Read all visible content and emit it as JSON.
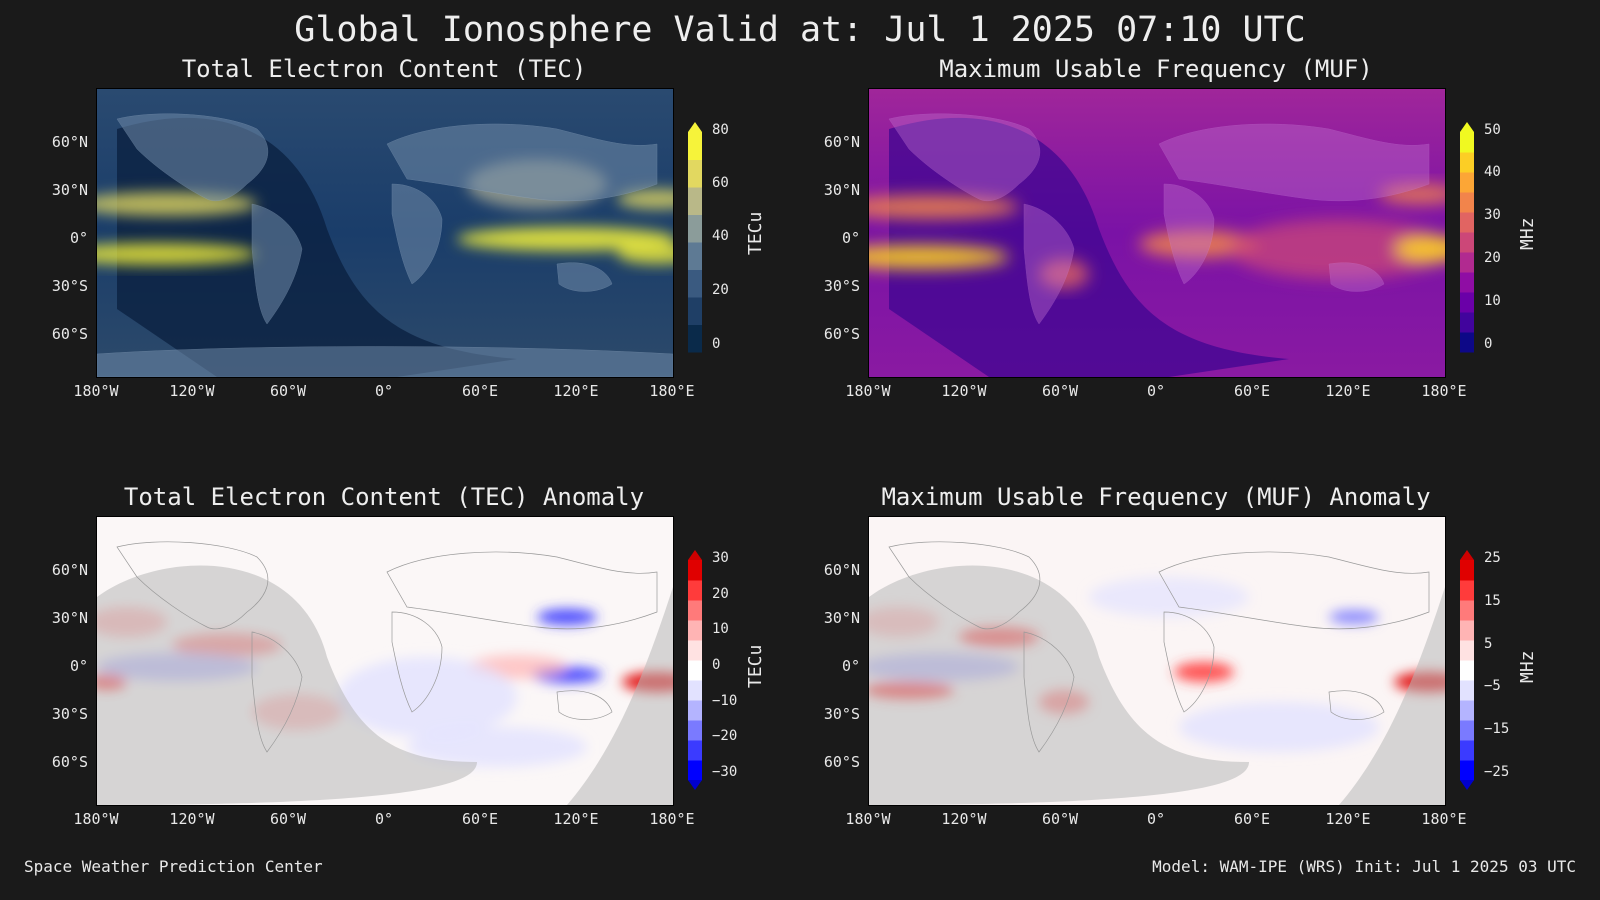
{
  "title": "Global Ionosphere Valid at: Jul 1 2025 07:10 UTC",
  "footer": {
    "left": "Space Weather Prediction Center",
    "right": "Model: WAM-IPE (WRS) Init: Jul 1 2025 03 UTC"
  },
  "map_axes": {
    "lat_labels": [
      "60°N",
      "30°N",
      "0°",
      "30°S",
      "60°S"
    ],
    "lon_labels": [
      "180°W",
      "120°W",
      "60°W",
      "0°",
      "60°E",
      "120°E",
      "180°E"
    ]
  },
  "panels": {
    "tec": {
      "title": "Total Electron Content (TEC)",
      "unit": "TECu",
      "colorbar_ticks": [
        "80",
        "60",
        "40",
        "20",
        "0"
      ],
      "colormap": [
        "#0a2a4a",
        "#1f3f66",
        "#3a5a80",
        "#5e7a94",
        "#8b9c9a",
        "#b9b888",
        "#e2d860",
        "#f6f33a"
      ],
      "extend_top_color": "#f6f33a"
    },
    "muf": {
      "title": "Maximum Usable Frequency (MUF)",
      "unit": "MHz",
      "colorbar_ticks": [
        "50",
        "40",
        "30",
        "20",
        "10",
        "0"
      ],
      "colormap": [
        "#0d0887",
        "#41049d",
        "#6a00a8",
        "#8f0da4",
        "#b12a90",
        "#cc4778",
        "#e16462",
        "#f2844b",
        "#fca636",
        "#fcce25",
        "#f0f921"
      ],
      "extend_top_color": "#f0f921"
    },
    "tec_anom": {
      "title": "Total Electron Content (TEC) Anomaly",
      "unit": "TECu",
      "colorbar_ticks": [
        "30",
        "20",
        "10",
        "0",
        "−10",
        "−20",
        "−30"
      ],
      "colormap": [
        "#0000ff",
        "#3b3bff",
        "#7a7aff",
        "#b4b4ff",
        "#e2e2ff",
        "#ffffff",
        "#ffe2e2",
        "#ffb4b4",
        "#ff7a7a",
        "#ff3b3b",
        "#e00000"
      ],
      "extend_top_color": "#cc0000",
      "extend_bottom_color": "#0000cc"
    },
    "muf_anom": {
      "title": "Maximum Usable Frequency (MUF) Anomaly",
      "unit": "MHz",
      "colorbar_ticks": [
        "25",
        "15",
        "5",
        "−5",
        "−15",
        "−25"
      ],
      "colormap": [
        "#0000ff",
        "#3b3bff",
        "#7a7aff",
        "#b4b4ff",
        "#e2e2ff",
        "#ffffff",
        "#ffe2e2",
        "#ffb4b4",
        "#ff7a7a",
        "#ff3b3b",
        "#e00000"
      ],
      "extend_top_color": "#cc0000",
      "extend_bottom_color": "#0000cc"
    }
  }
}
